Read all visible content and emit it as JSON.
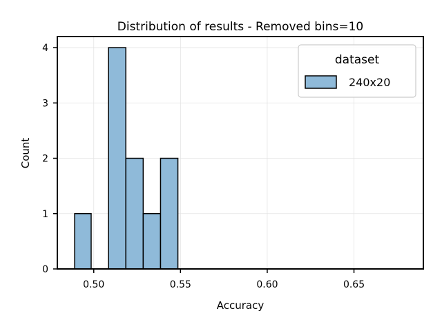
{
  "chart_data": {
    "type": "bar",
    "title": "Distribution of results - Removed bins=10",
    "xlabel": "Accuracy",
    "ylabel": "Count",
    "xlim": [
      0.479,
      0.69
    ],
    "ylim": [
      0,
      4.2
    ],
    "x_ticks": [
      0.5,
      0.55,
      0.6,
      0.65
    ],
    "x_tick_labels": [
      "0.50",
      "0.55",
      "0.60",
      "0.65"
    ],
    "y_ticks": [
      0,
      1,
      2,
      3,
      4
    ],
    "y_tick_labels": [
      "0",
      "1",
      "2",
      "3",
      "4"
    ],
    "grid": true,
    "bin_edges": [
      0.489,
      0.4985,
      0.5085,
      0.5185,
      0.5285,
      0.5385,
      0.5485,
      0.5585,
      0.5685,
      0.5785,
      0.5885,
      0.5985,
      0.6085,
      0.6185,
      0.6285,
      0.6385,
      0.6485,
      0.6585,
      0.6685,
      0.6785
    ],
    "counts": [
      1,
      0,
      4,
      2,
      1,
      2,
      0,
      0,
      0,
      0,
      0,
      0,
      0,
      0,
      0,
      0,
      0,
      0,
      0
    ],
    "series": [
      {
        "name": "240x20",
        "color": "#8fbad9"
      }
    ],
    "legend": {
      "title": "dataset",
      "placement": "top-right"
    }
  }
}
